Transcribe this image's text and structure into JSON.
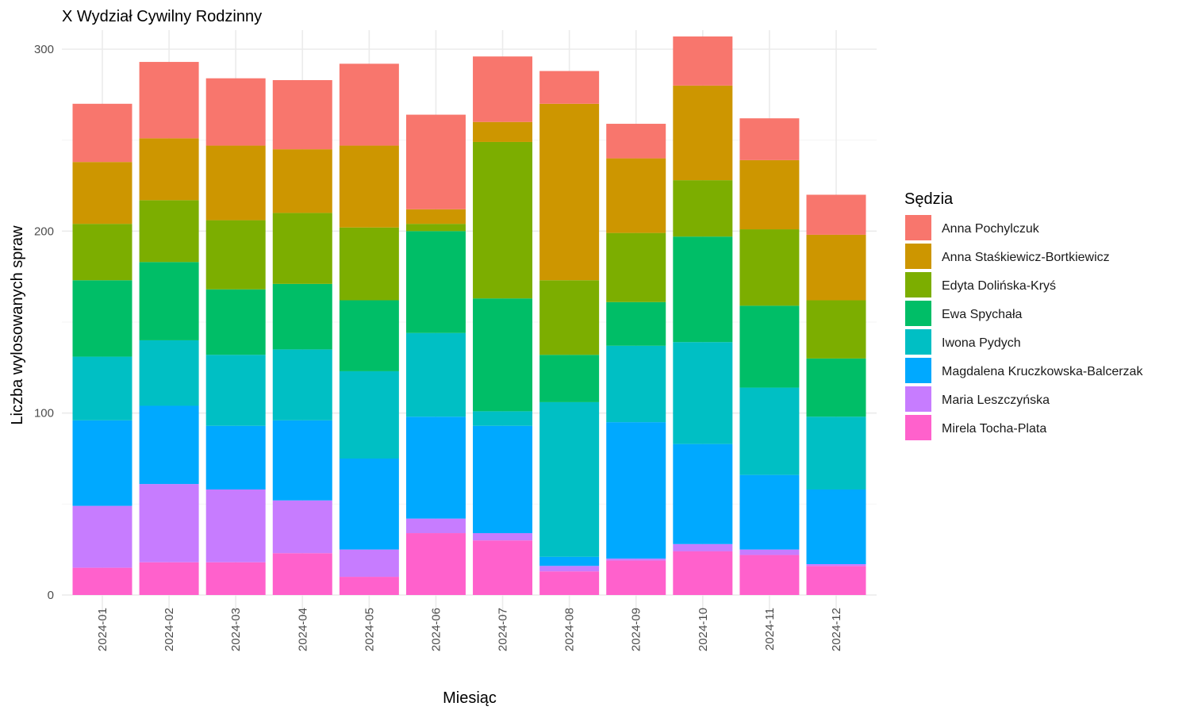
{
  "chart_data": {
    "type": "bar",
    "stacked": true,
    "title": "X Wydział Cywilny Rodzinny",
    "xlabel": "Miesiąc",
    "ylabel": "Liczba wylosowanych spraw",
    "ylim": [
      0,
      310
    ],
    "yticks": [
      "0",
      "100",
      "200",
      "300"
    ],
    "grid": true,
    "legend_title": "Sędzia",
    "legend_position": "right",
    "categories": [
      "2024-01",
      "2024-02",
      "2024-03",
      "2024-04",
      "2024-05",
      "2024-06",
      "2024-07",
      "2024-08",
      "2024-09",
      "2024-10",
      "2024-11",
      "2024-12"
    ],
    "series": [
      {
        "name": "Mirela Tocha-Plata",
        "color": "#FF61CC",
        "values": [
          15,
          18,
          18,
          23,
          10,
          34,
          30,
          13,
          19,
          24,
          22,
          16
        ]
      },
      {
        "name": "Maria Leszczyńska",
        "color": "#C77CFF",
        "values": [
          34,
          43,
          40,
          29,
          15,
          8,
          4,
          3,
          1,
          4,
          3,
          1
        ]
      },
      {
        "name": "Magdalena Kruczkowska-Balcerzak",
        "color": "#00A9FF",
        "values": [
          47,
          43,
          35,
          44,
          50,
          56,
          59,
          5,
          75,
          55,
          41,
          41
        ]
      },
      {
        "name": "Iwona Pydych",
        "color": "#00BFC4",
        "values": [
          35,
          36,
          39,
          39,
          48,
          46,
          8,
          85,
          42,
          56,
          48,
          40
        ]
      },
      {
        "name": "Ewa Spychała",
        "color": "#00BE67",
        "values": [
          42,
          43,
          36,
          36,
          39,
          56,
          62,
          26,
          24,
          58,
          45,
          32
        ]
      },
      {
        "name": "Edyta Dolińska-Kryś",
        "color": "#7CAE00",
        "values": [
          31,
          34,
          38,
          39,
          40,
          4,
          86,
          41,
          38,
          31,
          42,
          32
        ]
      },
      {
        "name": "Anna Staśkiewicz-Bortkiewicz",
        "color": "#CD9600",
        "values": [
          34,
          34,
          41,
          35,
          45,
          8,
          11,
          97,
          41,
          52,
          38,
          36
        ]
      },
      {
        "name": "Anna Pochylczuk",
        "color": "#F8766D",
        "values": [
          32,
          42,
          37,
          38,
          45,
          52,
          36,
          18,
          19,
          27,
          23,
          22
        ]
      }
    ],
    "legend_order": [
      "Anna Pochylczuk",
      "Anna Staśkiewicz-Bortkiewicz",
      "Edyta Dolińska-Kryś",
      "Ewa Spychała",
      "Iwona Pydych",
      "Magdalena Kruczkowska-Balcerzak",
      "Maria Leszczyńska",
      "Mirela Tocha-Plata"
    ]
  }
}
